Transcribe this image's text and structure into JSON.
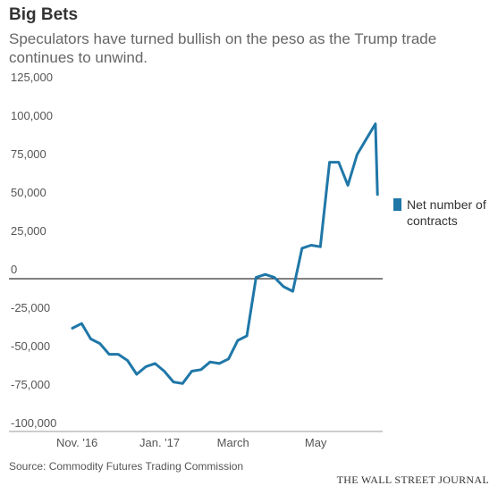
{
  "header": {
    "title": "Big Bets",
    "subtitle": "Speculators have turned bullish on the peso as the Trump trade continues to unwind."
  },
  "legend": {
    "label": "Net number of contracts",
    "color": "#1f77a8"
  },
  "footer": {
    "source": "Source: Commodity Futures Trading Commission",
    "brand": "THE WALL STREET JOURNAL"
  },
  "chart_data": {
    "type": "line",
    "title": "Big Bets",
    "xlabel": "",
    "ylabel": "",
    "ylim": [
      -100000,
      125000
    ],
    "y_ticks": [
      125000,
      100000,
      75000,
      50000,
      25000,
      0,
      -25000,
      -50000,
      -75000,
      -100000
    ],
    "y_tick_labels": [
      "125,000",
      "100,000",
      "75,000",
      "50,000",
      "25,000",
      "0",
      "-25,000",
      "-50,000",
      "-75,000",
      "-100,000"
    ],
    "x_tick_labels": [
      {
        "label": "Nov. '16",
        "week": 0.5
      },
      {
        "label": "Jan. '17",
        "week": 9.5
      },
      {
        "label": "March",
        "week": 17.5
      },
      {
        "label": "May",
        "week": 26.5
      }
    ],
    "grid": false,
    "legend_position": "right",
    "series": [
      {
        "name": "Net number of contracts",
        "color": "#1f77a8",
        "x": [
          0,
          1,
          2,
          3,
          4,
          5,
          6,
          7,
          8,
          9,
          10,
          11,
          12,
          13,
          14,
          15,
          16,
          17,
          18,
          19,
          20,
          21,
          22,
          23,
          24,
          25,
          26,
          27,
          28,
          29,
          30,
          31,
          32,
          33
        ],
        "values": [
          -38000,
          -35000,
          -45000,
          -48000,
          -55000,
          -55000,
          -59000,
          -68000,
          -63000,
          -61000,
          -66000,
          -73000,
          -74000,
          -66000,
          -65000,
          -60000,
          -61000,
          -58000,
          -46000,
          -43000,
          -5000,
          -3000,
          -5000,
          -11000,
          -14000,
          14000,
          16000,
          15000,
          70000,
          70000,
          55000,
          75000,
          85000,
          95000
        ]
      }
    ],
    "last_point": {
      "x": 34,
      "value": 49000
    }
  }
}
